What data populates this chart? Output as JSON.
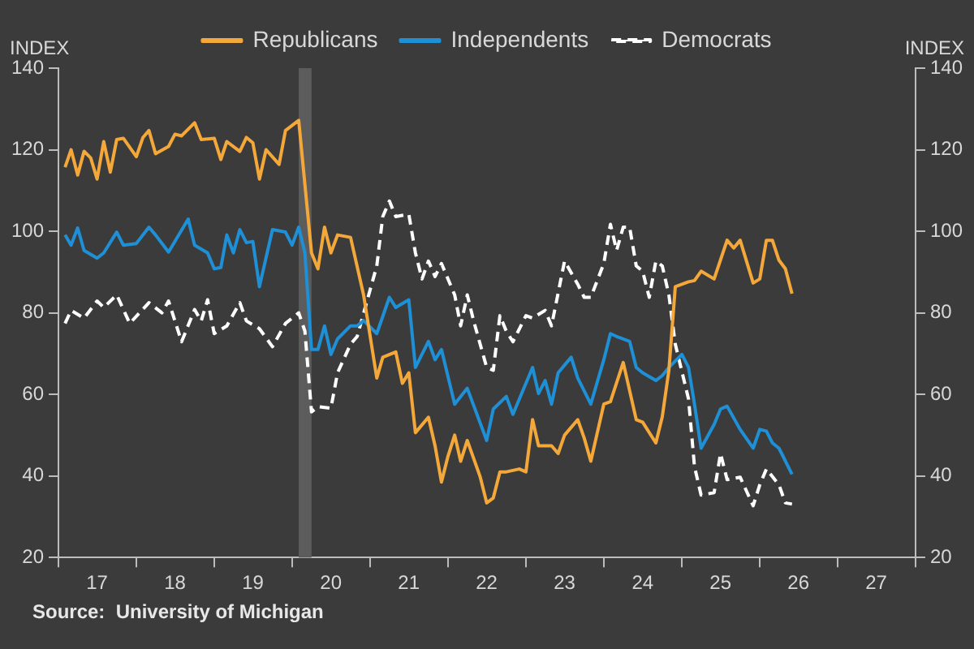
{
  "chart_data": {
    "type": "line",
    "ylabel": "INDEX",
    "y2label": "INDEX",
    "annotations": [
      "Source:  University of Michigan"
    ],
    "xlim": [
      "2017-01",
      "2028-01"
    ],
    "xticks": [
      {
        "value": "2017-01",
        "label": null
      },
      {
        "value": "2017-07",
        "label": "17"
      },
      {
        "value": "2018-01",
        "label": null
      },
      {
        "value": "2018-07",
        "label": "18"
      },
      {
        "value": "2019-01",
        "label": null
      },
      {
        "value": "2019-07",
        "label": "19"
      },
      {
        "value": "2020-01",
        "label": null
      },
      {
        "value": "2020-07",
        "label": "20"
      },
      {
        "value": "2021-01",
        "label": null
      },
      {
        "value": "2021-07",
        "label": "21"
      },
      {
        "value": "2022-01",
        "label": null
      },
      {
        "value": "2022-07",
        "label": "22"
      },
      {
        "value": "2023-01",
        "label": null
      },
      {
        "value": "2023-07",
        "label": "23"
      },
      {
        "value": "2024-01",
        "label": null
      },
      {
        "value": "2024-07",
        "label": "24"
      },
      {
        "value": "2025-01",
        "label": null
      },
      {
        "value": "2025-07",
        "label": "25"
      },
      {
        "value": "2026-01",
        "label": null
      },
      {
        "value": "2026-07",
        "label": "26"
      },
      {
        "value": "2027-01",
        "label": null
      },
      {
        "value": "2027-07",
        "label": "27"
      },
      {
        "value": "2028-01",
        "label": null
      }
    ],
    "ylim": [
      20,
      140
    ],
    "yticks": [
      20,
      40,
      60,
      80,
      100,
      120,
      140
    ],
    "y2lim": [
      20,
      140
    ],
    "y2ticks": [
      20,
      40,
      60,
      80,
      100,
      120,
      140
    ],
    "grid": false,
    "legend": "top",
    "marker": "none",
    "bands": [
      {
        "axis": "x",
        "from": "2020-02",
        "to": "2020-04",
        "color": "#5c5c5c"
      }
    ],
    "series": [
      {
        "name": "Republicans",
        "color": "#f5a83a",
        "line_style": "solid",
        "x": [
          "2017-02",
          "2017-03",
          "2017-04",
          "2017-05",
          "2017-06",
          "2017-07",
          "2017-08",
          "2017-09",
          "2017-10",
          "2017-11",
          "2018-01",
          "2018-02",
          "2018-03",
          "2018-04",
          "2018-06",
          "2018-07",
          "2018-08",
          "2018-10",
          "2018-11",
          "2019-01",
          "2019-02",
          "2019-03",
          "2019-05",
          "2019-06",
          "2019-07",
          "2019-08",
          "2019-09",
          "2019-11",
          "2019-12",
          "2020-02",
          "2020-04",
          "2020-05",
          "2020-06",
          "2020-07",
          "2020-08",
          "2020-10",
          "2020-12",
          "2021-01",
          "2021-02",
          "2021-03",
          "2021-05",
          "2021-06",
          "2021-07",
          "2021-08",
          "2021-10",
          "2021-11",
          "2021-12",
          "2022-01",
          "2022-02",
          "2022-03",
          "2022-04",
          "2022-06",
          "2022-07",
          "2022-08",
          "2022-09",
          "2022-10",
          "2022-12",
          "2023-01",
          "2023-02",
          "2023-03",
          "2023-05",
          "2023-06",
          "2023-07",
          "2023-09",
          "2023-10",
          "2023-11",
          "2024-01",
          "2024-02",
          "2024-04",
          "2024-06",
          "2024-07",
          "2024-09",
          "2024-10",
          "2024-11",
          "2024-12",
          "2025-02",
          "2025-03",
          "2025-04",
          "2025-06",
          "2025-08",
          "2025-09",
          "2025-10",
          "2025-12",
          "2026-01",
          "2026-02",
          "2026-03",
          "2026-04",
          "2026-05",
          "2026-06"
        ],
        "values": [
          115.7,
          120,
          113.8,
          119.6,
          118,
          112.8,
          122,
          114.5,
          122.5,
          122.8,
          118.3,
          123,
          124.7,
          119,
          120.8,
          123.8,
          123.4,
          126.6,
          122.5,
          122.8,
          117.6,
          122,
          119.6,
          123,
          121.7,
          112.8,
          120,
          116.4,
          124.7,
          127.2,
          94.7,
          90.8,
          101,
          94.7,
          99.1,
          98.5,
          84.4,
          74.2,
          64,
          69.1,
          70.4,
          62.7,
          65.3,
          50.6,
          54.4,
          47.4,
          38.5,
          44.9,
          50,
          43.6,
          48.7,
          39.7,
          33.4,
          34.6,
          41,
          41,
          41.7,
          41,
          53.8,
          47.4,
          47.4,
          45.5,
          50,
          53.8,
          49.3,
          43.6,
          57.6,
          58.2,
          67.8,
          53.8,
          53.2,
          48.1,
          54.5,
          65.9,
          86.4,
          87.6,
          87.9,
          90.2,
          88.3,
          97.8,
          95.9,
          97.8,
          87.3,
          88.3,
          97.8,
          97.8,
          92.9,
          90.8,
          84.7
        ]
      },
      {
        "name": "Independents",
        "color": "#1f8fd6",
        "line_style": "solid",
        "x": [
          "2017-02",
          "2017-03",
          "2017-04",
          "2017-05",
          "2017-07",
          "2017-08",
          "2017-10",
          "2017-11",
          "2018-01",
          "2018-03",
          "2018-04",
          "2018-06",
          "2018-09",
          "2018-10",
          "2018-12",
          "2019-01",
          "2019-02",
          "2019-03",
          "2019-04",
          "2019-05",
          "2019-06",
          "2019-07",
          "2019-08",
          "2019-10",
          "2019-12",
          "2020-01",
          "2020-02",
          "2020-03",
          "2020-04",
          "2020-05",
          "2020-06",
          "2020-07",
          "2020-08",
          "2020-10",
          "2020-11",
          "2020-12",
          "2021-02",
          "2021-04",
          "2021-05",
          "2021-07",
          "2021-08",
          "2021-10",
          "2021-11",
          "2021-12",
          "2022-02",
          "2022-04",
          "2022-07",
          "2022-08",
          "2022-10",
          "2022-11",
          "2023-02",
          "2023-03",
          "2023-04",
          "2023-05",
          "2023-06",
          "2023-08",
          "2023-09",
          "2023-11",
          "2024-01",
          "2024-02",
          "2024-03",
          "2024-05",
          "2024-06",
          "2024-07",
          "2024-09",
          "2024-10",
          "2024-11",
          "2025-01",
          "2025-02",
          "2025-03",
          "2025-04",
          "2025-06",
          "2025-07",
          "2025-08",
          "2025-10",
          "2025-12",
          "2026-01",
          "2026-02",
          "2026-03",
          "2026-04",
          "2026-06"
        ],
        "values": [
          99.1,
          96.6,
          100.8,
          95.3,
          93.4,
          94.7,
          99.8,
          96.6,
          97,
          101,
          99.1,
          94.9,
          103,
          96.6,
          94.7,
          90.8,
          91.1,
          99.1,
          94.7,
          100.4,
          97.2,
          97.5,
          86.4,
          100.4,
          99.8,
          96.6,
          101,
          94.7,
          71,
          71,
          76.8,
          69.8,
          73.6,
          76.8,
          76.8,
          78.1,
          74.9,
          83.8,
          81.3,
          83.2,
          66.6,
          73,
          68.5,
          71,
          57.6,
          61.5,
          48.7,
          56.4,
          59.5,
          55.1,
          66.6,
          60.2,
          63.4,
          57.6,
          65.3,
          69.1,
          64,
          57.6,
          68.5,
          74.9,
          74.2,
          73,
          66.6,
          65.3,
          63.4,
          64.6,
          66.6,
          69.8,
          66.6,
          57.6,
          46.8,
          52.6,
          56.4,
          57.1,
          51.4,
          46.8,
          51.4,
          51,
          48.1,
          46.8,
          40.4
        ]
      },
      {
        "name": "Democrats",
        "color": "#ffffff",
        "line_style": "dashed",
        "x": [
          "2017-02",
          "2017-03",
          "2017-05",
          "2017-07",
          "2017-08",
          "2017-10",
          "2017-12",
          "2018-03",
          "2018-05",
          "2018-06",
          "2018-08",
          "2018-10",
          "2018-11",
          "2018-12",
          "2019-01",
          "2019-03",
          "2019-05",
          "2019-06",
          "2019-08",
          "2019-10",
          "2019-12",
          "2020-02",
          "2020-03",
          "2020-04",
          "2020-05",
          "2020-07",
          "2020-08",
          "2020-10",
          "2020-11",
          "2021-01",
          "2021-02",
          "2021-03",
          "2021-04",
          "2021-05",
          "2021-07",
          "2021-08",
          "2021-09",
          "2021-10",
          "2021-11",
          "2021-12",
          "2022-02",
          "2022-03",
          "2022-04",
          "2022-05",
          "2022-07",
          "2022-08",
          "2022-09",
          "2022-10",
          "2022-11",
          "2023-01",
          "2023-02",
          "2023-04",
          "2023-05",
          "2023-07",
          "2023-09",
          "2023-10",
          "2023-11",
          "2024-01",
          "2024-02",
          "2024-03",
          "2024-04",
          "2024-05",
          "2024-06",
          "2024-07",
          "2024-08",
          "2024-09",
          "2024-10",
          "2024-11",
          "2024-12",
          "2025-02",
          "2025-03",
          "2025-04",
          "2025-06",
          "2025-07",
          "2025-08",
          "2025-10",
          "2025-12",
          "2026-01",
          "2026-02",
          "2026-04",
          "2026-05",
          "2026-06"
        ],
        "values": [
          77.4,
          80.6,
          78.7,
          82.9,
          81.3,
          84.4,
          77.4,
          82.5,
          80,
          82.9,
          72.9,
          80.8,
          78,
          83.2,
          74.9,
          76.8,
          82.5,
          78,
          76.1,
          71.7,
          77.4,
          80,
          75.5,
          55.7,
          57,
          56.6,
          65.3,
          72.3,
          74.2,
          85.7,
          91.5,
          103.6,
          107.4,
          103.6,
          104.2,
          94.7,
          88.3,
          92.7,
          88.9,
          92.1,
          84.4,
          76.8,
          84.4,
          78,
          66.6,
          65.9,
          79.3,
          75.5,
          72.9,
          79.3,
          78.7,
          80.6,
          76.8,
          92.7,
          87,
          83.8,
          83.8,
          92.1,
          101.7,
          95.3,
          101,
          101,
          91.5,
          90.2,
          83.8,
          92.7,
          91.5,
          84.4,
          72.3,
          58.9,
          42.3,
          35.3,
          35.9,
          45.5,
          39.1,
          39.7,
          32.7,
          37.8,
          41.7,
          37.8,
          33.4,
          33.1
        ]
      }
    ]
  }
}
